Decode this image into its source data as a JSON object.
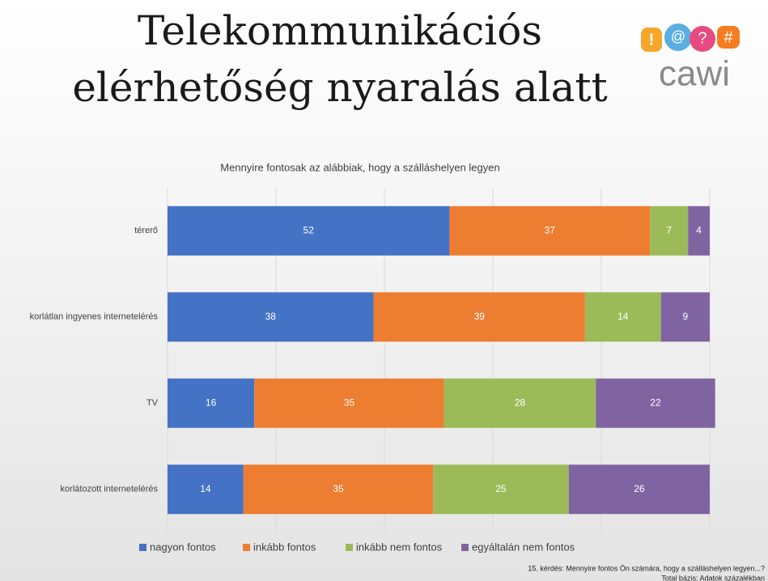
{
  "title": [
    "Telekommunikációs",
    "elérhetőség nyaralás alatt"
  ],
  "logo": {
    "text": "cawi",
    "symbols": [
      "!",
      "@",
      "?",
      "#"
    ]
  },
  "chart_data": {
    "type": "stacked-bar-horizontal",
    "title": "Mennyire fontosak az alábbiak, hogy a szálláshelyen legyen",
    "categories": [
      "térerő",
      "korlátlan ingyenes internetelérés",
      "TV",
      "korlátozott internetelérés"
    ],
    "series": [
      {
        "name": "nagyon fontos",
        "color": "#4472c4",
        "values": [
          52,
          38,
          16,
          14
        ]
      },
      {
        "name": "inkább fontos",
        "color": "#ed7d31",
        "values": [
          37,
          39,
          35,
          35
        ]
      },
      {
        "name": "inkább nem fontos",
        "color": "#9bbb59",
        "values": [
          7,
          14,
          28,
          25
        ]
      },
      {
        "name": "egyáltalán nem fontos",
        "color": "#8064a2",
        "values": [
          4,
          9,
          22,
          26
        ]
      }
    ],
    "xlim": [
      0,
      100
    ],
    "xticks": [
      0,
      20,
      40,
      60,
      80,
      100
    ],
    "grid": true,
    "legend": "bottom"
  },
  "footnote": [
    "15. kérdés: Mennyire fontos Ön számára, hogy a szálláshelyen legyen...?",
    "Total bázis; Adatok százalékban"
  ]
}
